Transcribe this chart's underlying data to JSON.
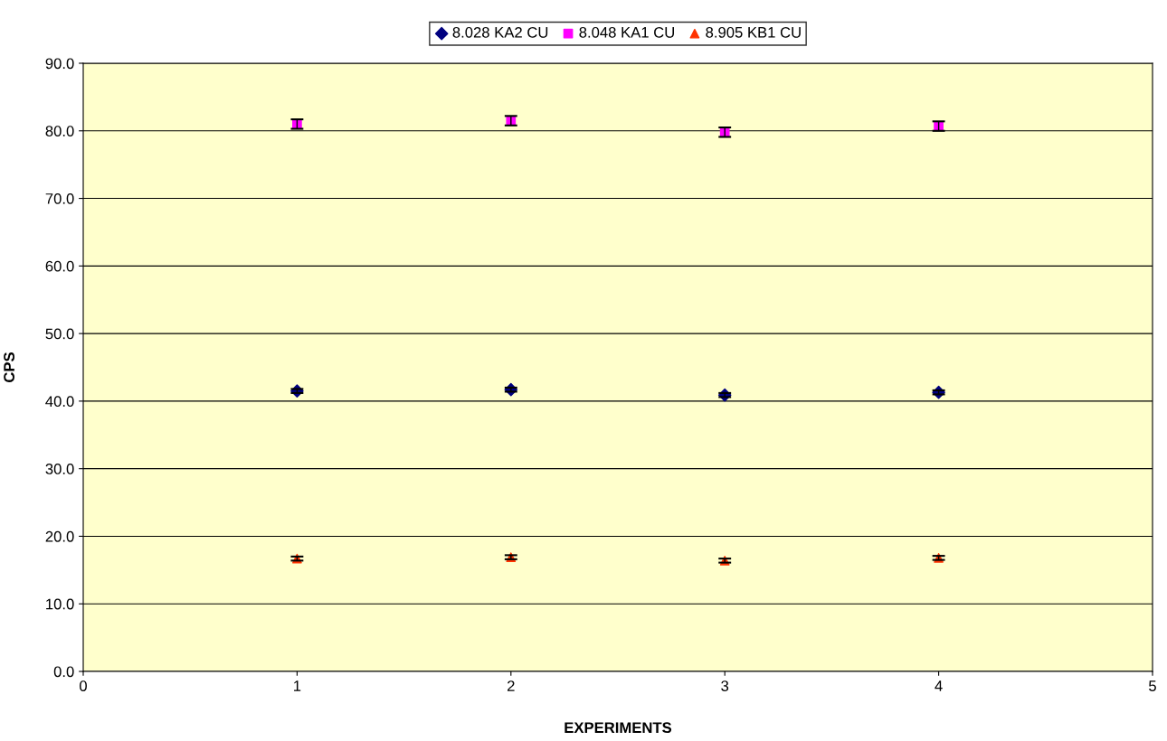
{
  "chart_data": {
    "type": "scatter",
    "xlabel": "EXPERIMENTS",
    "ylabel": "CPS",
    "x": [
      1,
      2,
      3,
      4
    ],
    "xlim": [
      0,
      5
    ],
    "xticks": [
      0,
      1,
      2,
      3,
      4,
      5
    ],
    "ylim": [
      0,
      90
    ],
    "yticks": [
      {
        "value": 0,
        "label": "0.0"
      },
      {
        "value": 10,
        "label": "10.0"
      },
      {
        "value": 20,
        "label": "20.0"
      },
      {
        "value": 30,
        "label": "30.0"
      },
      {
        "value": 40,
        "label": "40.0"
      },
      {
        "value": 50,
        "label": "50.0"
      },
      {
        "value": 60,
        "label": "60.0"
      },
      {
        "value": 70,
        "label": "70.0"
      },
      {
        "value": 80,
        "label": "80.0"
      },
      {
        "value": 90,
        "label": "90.0"
      }
    ],
    "grid": "y",
    "legend": "top",
    "series": [
      {
        "name": "8.028 KA2 CU",
        "color": "#000080",
        "marker": "diamond",
        "values": [
          41.5,
          41.7,
          40.9,
          41.3
        ],
        "errors": [
          0.3,
          0.3,
          0.3,
          0.3
        ]
      },
      {
        "name": "8.048 KA1 CU",
        "color": "#ff00ff",
        "marker": "square",
        "values": [
          81.0,
          81.5,
          79.8,
          80.7
        ],
        "errors": [
          0.7,
          0.7,
          0.7,
          0.7
        ]
      },
      {
        "name": "8.905 KB1 CU",
        "color": "#ff3300",
        "marker": "triangle",
        "values": [
          16.7,
          16.9,
          16.4,
          16.8
        ],
        "errors": [
          0.3,
          0.3,
          0.3,
          0.3
        ]
      }
    ]
  }
}
